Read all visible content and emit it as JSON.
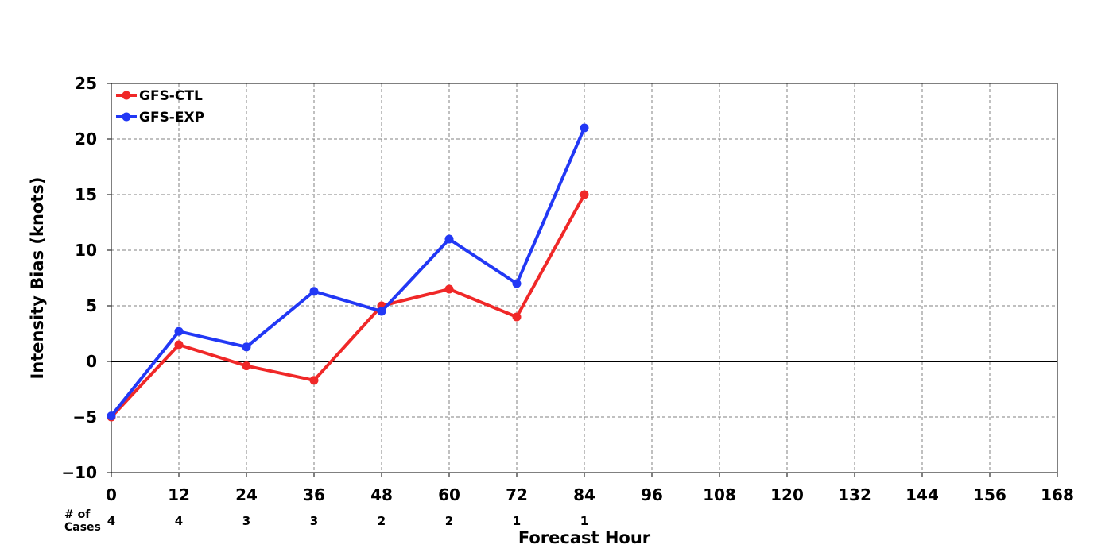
{
  "chart_data": {
    "type": "line",
    "title": "",
    "xlabel": "Forecast Hour",
    "ylabel": "Intensity Bias (knots)",
    "xlim": [
      0,
      168
    ],
    "ylim": [
      -10,
      25
    ],
    "x_ticks": [
      0,
      12,
      24,
      36,
      48,
      60,
      72,
      84,
      96,
      108,
      120,
      132,
      144,
      156,
      168
    ],
    "y_ticks": [
      -10,
      -5,
      0,
      5,
      10,
      15,
      20,
      25
    ],
    "x_tick_labels": [
      "0",
      "12",
      "24",
      "36",
      "48",
      "60",
      "72",
      "84",
      "96",
      "108",
      "120",
      "132",
      "144",
      "156",
      "168"
    ],
    "y_tick_labels": [
      "−10",
      "−5",
      "0",
      "5",
      "10",
      "15",
      "20",
      "25"
    ],
    "grid": true,
    "zero_line": true,
    "legend_position": "top-left",
    "x": [
      0,
      12,
      24,
      36,
      48,
      60,
      72,
      84
    ],
    "series": [
      {
        "name": "GFS-CTL",
        "color": "#f02828",
        "values": [
          -5.0,
          1.5,
          -0.4,
          -1.7,
          5.0,
          6.5,
          4.0,
          15.0
        ]
      },
      {
        "name": "GFS-EXP",
        "color": "#2238f5",
        "values": [
          -4.9,
          2.7,
          1.3,
          6.3,
          4.5,
          11.0,
          7.0,
          21.0
        ]
      }
    ],
    "cases": {
      "label_line1": "# of",
      "label_line2": "Cases",
      "x": [
        0,
        12,
        24,
        36,
        48,
        60,
        72,
        84
      ],
      "counts": [
        "4",
        "4",
        "3",
        "3",
        "2",
        "2",
        "1",
        "1"
      ]
    }
  }
}
